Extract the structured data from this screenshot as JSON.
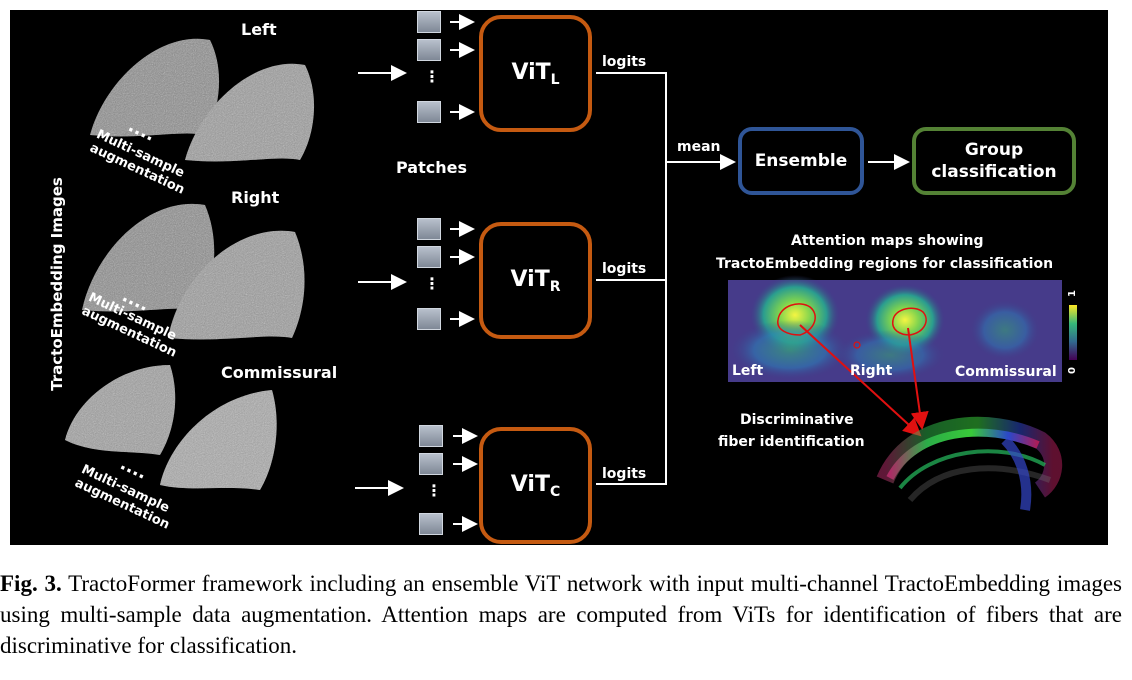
{
  "side_label": "TractoEmbedding Images",
  "inputs": [
    {
      "name": "Left",
      "aug_label": "Multi-sample augmentation"
    },
    {
      "name": "Right",
      "aug_label": "Multi-sample augmentation"
    },
    {
      "name": "Commissural",
      "aug_label": "Multi-sample augmentation"
    }
  ],
  "patches_label": "Patches",
  "dots_label": "⋮",
  "vit": [
    {
      "main": "ViT",
      "sub": "L",
      "out_label": "logits"
    },
    {
      "main": "ViT",
      "sub": "R",
      "out_label": "logits"
    },
    {
      "main": "ViT",
      "sub": "C",
      "out_label": "logits"
    }
  ],
  "mean_label": "mean",
  "ensemble_label": "Ensemble",
  "group_label_line1": "Group",
  "group_label_line2": "classification",
  "attention_title_line1": "Attention maps showing",
  "attention_title_line2": "TractoEmbedding regions for classification",
  "attention_panels": [
    "Left",
    "Right",
    "Commissural"
  ],
  "colorbar_max": "1",
  "colorbar_min": "0",
  "discriminative_line1": "Discriminative",
  "discriminative_line2": "fiber identification",
  "caption_fig": "Fig. 3.",
  "caption_text": " TractoFormer framework including an ensemble ViT network with input multi-channel TractoEmbedding images using multi-sample data augmentation. Attention maps are computed from ViTs for identification of fibers that are discriminative for classification.",
  "colors": {
    "vit_border": "#c55a11",
    "ensemble_border": "#2f5597",
    "group_border": "#548235",
    "background": "#000000",
    "highlight": "#e01010"
  }
}
